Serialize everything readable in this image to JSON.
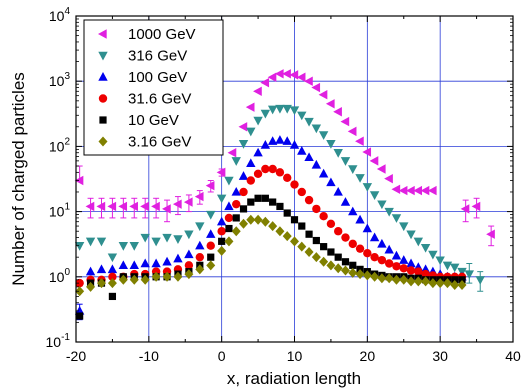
{
  "chart_data": {
    "type": "scatter",
    "title": "",
    "xlabel": "x, radiation length",
    "ylabel": "Number of charged particles",
    "xlim": [
      -20,
      40
    ],
    "ylim": [
      0.1,
      10000
    ],
    "yscale": "log",
    "grid": true,
    "legend_position": "top-left",
    "x_ticks": [
      -20,
      -10,
      0,
      10,
      20,
      30,
      40
    ],
    "x_tick_labels": [
      "-20",
      "-10",
      "0",
      "10",
      "20",
      "30",
      "40"
    ],
    "y_ticks": [
      0.1,
      1,
      10,
      100,
      1000,
      10000
    ],
    "y_tick_labels": [
      {
        "base": "10",
        "exp": "-1"
      },
      {
        "base": "10",
        "exp": "0"
      },
      {
        "base": "10",
        "exp": "1"
      },
      {
        "base": "10",
        "exp": "2"
      },
      {
        "base": "10",
        "exp": "3"
      },
      {
        "base": "10",
        "exp": "4"
      }
    ],
    "series": [
      {
        "name": "1000 GeV",
        "marker": "triangle-left",
        "color": "#e020e0",
        "x": [
          -19.5,
          -18,
          -16.5,
          -15,
          -13.5,
          -12,
          -10.5,
          -9,
          -7.5,
          -6,
          -4.5,
          -3,
          -1.5,
          0,
          1.5,
          3,
          4,
          5,
          6,
          7,
          8,
          9,
          10,
          11,
          12,
          13,
          14,
          15,
          16,
          17,
          18,
          19,
          20,
          21,
          22,
          23,
          24,
          25,
          26,
          27,
          28,
          29,
          33.5,
          35,
          37
        ],
        "y": [
          30,
          12,
          12,
          12,
          12,
          12,
          12,
          12,
          11,
          13,
          14,
          17,
          25,
          40,
          80,
          200,
          400,
          700,
          950,
          1150,
          1300,
          1300,
          1250,
          1150,
          1000,
          800,
          620,
          450,
          340,
          240,
          170,
          120,
          82,
          60,
          45,
          32,
          22,
          21,
          21,
          21,
          21,
          21,
          11,
          12,
          4.5
        ],
        "error_y": [
          [
            0,
            20
          ],
          [
            4,
            4
          ],
          [
            4,
            4
          ],
          [
            4,
            4
          ],
          [
            4,
            4
          ],
          [
            4,
            4
          ],
          [
            4,
            4
          ],
          [
            4,
            4
          ],
          [
            4,
            4
          ],
          [
            4,
            4
          ],
          [
            4,
            4
          ],
          [
            4,
            4
          ],
          [
            5,
            5
          ],
          [
            5,
            5
          ],
          [
            0,
            0
          ],
          [
            0,
            0
          ],
          [
            0,
            0
          ],
          [
            0,
            0
          ],
          [
            0,
            0
          ],
          [
            0,
            0
          ],
          [
            0,
            0
          ],
          [
            0,
            0
          ],
          [
            0,
            0
          ],
          [
            0,
            0
          ],
          [
            0,
            0
          ],
          [
            0,
            0
          ],
          [
            0,
            0
          ],
          [
            0,
            0
          ],
          [
            0,
            0
          ],
          [
            0,
            0
          ],
          [
            0,
            0
          ],
          [
            0,
            0
          ],
          [
            0,
            0
          ],
          [
            0,
            0
          ],
          [
            0,
            0
          ],
          [
            0,
            0
          ],
          [
            0,
            0
          ],
          [
            0,
            0
          ],
          [
            0,
            0
          ],
          [
            0,
            0
          ],
          [
            0,
            0
          ],
          [
            0,
            0
          ],
          [
            4,
            4
          ],
          [
            4,
            4
          ],
          [
            1.5,
            1.5
          ]
        ]
      },
      {
        "name": "316 GeV",
        "marker": "triangle-down",
        "color": "#2f8f8f",
        "x": [
          -19.5,
          -18,
          -16.5,
          -15,
          -13.5,
          -12,
          -10.5,
          -9,
          -7.5,
          -6,
          -4.5,
          -3,
          -1.5,
          0,
          1,
          2,
          3,
          4,
          5,
          6,
          7,
          8,
          9,
          10,
          11,
          12,
          13,
          14,
          15,
          16,
          17,
          18,
          19,
          20,
          21,
          22,
          23,
          24,
          25,
          26,
          27,
          28,
          29,
          30,
          31,
          32,
          33,
          34,
          35.5
        ],
        "y": [
          3,
          3.5,
          3.5,
          2,
          3,
          3,
          4,
          3.5,
          4,
          3.8,
          4.5,
          6,
          9,
          16,
          30,
          60,
          110,
          170,
          250,
          320,
          370,
          380,
          380,
          360,
          300,
          240,
          190,
          150,
          110,
          80,
          60,
          45,
          33,
          24,
          18,
          13,
          10,
          8,
          6,
          4.5,
          3.5,
          2.8,
          2.2,
          1.8,
          1.5,
          1.4,
          1.2,
          1.1,
          0.9
        ],
        "error_y": [
          [
            0,
            0
          ],
          [
            0,
            0
          ],
          [
            0,
            0
          ],
          [
            0,
            0
          ],
          [
            0,
            0
          ],
          [
            0,
            0
          ],
          [
            0,
            0
          ],
          [
            0,
            0
          ],
          [
            0,
            0
          ],
          [
            0,
            0
          ],
          [
            0,
            0
          ],
          [
            0,
            0
          ],
          [
            0,
            0
          ],
          [
            0,
            0
          ],
          [
            0,
            0
          ],
          [
            0,
            0
          ],
          [
            0,
            0
          ],
          [
            0,
            0
          ],
          [
            0,
            0
          ],
          [
            0,
            0
          ],
          [
            0,
            0
          ],
          [
            0,
            0
          ],
          [
            0,
            0
          ],
          [
            0,
            0
          ],
          [
            0,
            0
          ],
          [
            0,
            0
          ],
          [
            0,
            0
          ],
          [
            0,
            0
          ],
          [
            0,
            0
          ],
          [
            0,
            0
          ],
          [
            0,
            0
          ],
          [
            0,
            0
          ],
          [
            0,
            0
          ],
          [
            0,
            0
          ],
          [
            0,
            0
          ],
          [
            0,
            0
          ],
          [
            0,
            0
          ],
          [
            0,
            0
          ],
          [
            0,
            0
          ],
          [
            0,
            0
          ],
          [
            0,
            0
          ],
          [
            0,
            0
          ],
          [
            0,
            0
          ],
          [
            0,
            0
          ],
          [
            0,
            0
          ],
          [
            0,
            0
          ],
          [
            0,
            0
          ],
          [
            0.3,
            0.5
          ],
          [
            0.3,
            0.3
          ]
        ]
      },
      {
        "name": "100 GeV",
        "marker": "triangle-up",
        "color": "#0000ee",
        "x": [
          -19.5,
          -18,
          -16.5,
          -15,
          -13.5,
          -12,
          -10.5,
          -9,
          -7.5,
          -6,
          -4.5,
          -3,
          -1.5,
          0,
          1,
          2,
          3,
          4,
          5,
          6,
          7,
          8,
          9,
          10,
          11,
          12,
          13,
          14,
          15,
          16,
          17,
          18,
          19,
          20,
          21,
          22,
          23,
          24,
          25,
          26,
          27,
          28,
          29,
          30,
          31,
          32,
          33
        ],
        "y": [
          0.3,
          1.2,
          1.3,
          1.3,
          1.5,
          1.5,
          1.6,
          1.6,
          1.7,
          1.9,
          2.2,
          3,
          4.5,
          7,
          12,
          20,
          35,
          55,
          80,
          105,
          120,
          125,
          120,
          105,
          85,
          68,
          52,
          38,
          28,
          20,
          14,
          10,
          7.5,
          5.5,
          4,
          3.2,
          2.6,
          2.1,
          1.8,
          1.6,
          1.4,
          1.3,
          1.2,
          1.1,
          1.0,
          1.0,
          1.0
        ],
        "error_y": [
          [
            0.08,
            0.08
          ],
          [
            0,
            0
          ],
          [
            0,
            0
          ],
          [
            0,
            0
          ],
          [
            0,
            0
          ],
          [
            0,
            0
          ],
          [
            0,
            0
          ],
          [
            0,
            0
          ],
          [
            0,
            0
          ],
          [
            0,
            0
          ],
          [
            0,
            0
          ],
          [
            0,
            0
          ],
          [
            0,
            0
          ],
          [
            0,
            0
          ],
          [
            0,
            0
          ],
          [
            0,
            0
          ],
          [
            0,
            0
          ],
          [
            0,
            0
          ],
          [
            0,
            0
          ],
          [
            0,
            0
          ],
          [
            0,
            0
          ],
          [
            0,
            0
          ],
          [
            0,
            0
          ],
          [
            0,
            0
          ],
          [
            0,
            0
          ],
          [
            0,
            0
          ],
          [
            0,
            0
          ],
          [
            0,
            0
          ],
          [
            0,
            0
          ],
          [
            0,
            0
          ],
          [
            0,
            0
          ],
          [
            0,
            0
          ],
          [
            0,
            0
          ],
          [
            0,
            0
          ],
          [
            0,
            0
          ],
          [
            0,
            0
          ],
          [
            0,
            0
          ],
          [
            0,
            0
          ],
          [
            0,
            0
          ],
          [
            0,
            0
          ],
          [
            0,
            0
          ],
          [
            0,
            0
          ],
          [
            0,
            0
          ],
          [
            0,
            0
          ],
          [
            0,
            0
          ],
          [
            0,
            0
          ],
          [
            0,
            0
          ]
        ]
      },
      {
        "name": "31.6 GeV",
        "marker": "circle",
        "color": "#ee0000",
        "x": [
          -19.5,
          -18,
          -16.5,
          -15,
          -13.5,
          -12,
          -10.5,
          -9,
          -7.5,
          -6,
          -4.5,
          -3,
          -1.5,
          0,
          1,
          2,
          3,
          4,
          5,
          6,
          7,
          8,
          9,
          10,
          11,
          12,
          13,
          14,
          15,
          16,
          17,
          18,
          19,
          20,
          21,
          22,
          23,
          24,
          25,
          26,
          27,
          28,
          29,
          30,
          31,
          32,
          33
        ],
        "y": [
          0.8,
          0.9,
          0.9,
          1.0,
          1.0,
          1.1,
          1.1,
          1.2,
          1.2,
          1.3,
          1.5,
          2,
          3,
          5,
          8,
          13,
          20,
          30,
          38,
          45,
          45,
          40,
          33,
          26,
          20,
          15,
          11,
          8.5,
          6.5,
          5,
          4,
          3.2,
          2.7,
          2.3,
          2,
          1.8,
          1.6,
          1.45,
          1.35,
          1.25,
          1.2,
          1.1,
          1.05,
          1.0,
          1.0,
          1.0,
          1.0
        ],
        "error_y": []
      },
      {
        "name": "10 GeV",
        "marker": "square",
        "color": "#000000",
        "x": [
          -19.5,
          -18,
          -16.5,
          -15,
          -13.5,
          -12,
          -10.5,
          -9,
          -7.5,
          -6,
          -4.5,
          -3,
          -1.5,
          0,
          1,
          2,
          3,
          4,
          5,
          6,
          7,
          8,
          9,
          10,
          11,
          12,
          13,
          14,
          15,
          16,
          17,
          18,
          19,
          20,
          21,
          22,
          23,
          24,
          25,
          26,
          27,
          28,
          29,
          30,
          31,
          32,
          33
        ],
        "y": [
          0.25,
          0.8,
          0.8,
          0.5,
          1.0,
          1.0,
          1.0,
          1.0,
          1.0,
          1.1,
          1.2,
          1.5,
          2,
          3.5,
          5.5,
          8,
          11,
          14,
          16,
          16,
          14,
          12,
          9.5,
          7.5,
          6,
          4.5,
          3.6,
          2.9,
          2.4,
          2,
          1.7,
          1.5,
          1.3,
          1.2,
          1.1,
          1.05,
          1.0,
          1.0,
          1.0,
          0.95,
          0.95,
          0.9,
          0.9,
          0.9,
          0.9,
          0.9,
          0.9
        ],
        "error_y": []
      },
      {
        "name": "3.16 GeV",
        "marker": "diamond",
        "color": "#808000",
        "x": [
          -19.5,
          -18,
          -16.5,
          -15,
          -13.5,
          -12,
          -10.5,
          -9,
          -7.5,
          -6,
          -4.5,
          -3,
          -1.5,
          0,
          1,
          2,
          3,
          4,
          5,
          6,
          7,
          8,
          9,
          10,
          11,
          12,
          13,
          14,
          15,
          16,
          17,
          18,
          19,
          20,
          21,
          22,
          23,
          24,
          25,
          26,
          27,
          28,
          29,
          30,
          31,
          32,
          33
        ],
        "y": [
          0.6,
          0.7,
          0.8,
          0.8,
          0.9,
          0.9,
          0.9,
          1.0,
          1.0,
          1.0,
          1.1,
          1.3,
          1.5,
          2.5,
          3.5,
          5,
          6.5,
          7.5,
          7.5,
          7,
          6,
          5,
          4.2,
          3.5,
          2.9,
          2.4,
          2,
          1.7,
          1.5,
          1.35,
          1.25,
          1.15,
          1.1,
          1.05,
          1.0,
          0.95,
          0.95,
          0.9,
          0.9,
          0.85,
          0.85,
          0.85,
          0.8,
          0.8,
          0.8,
          0.75,
          0.75
        ],
        "error_y": []
      }
    ]
  }
}
